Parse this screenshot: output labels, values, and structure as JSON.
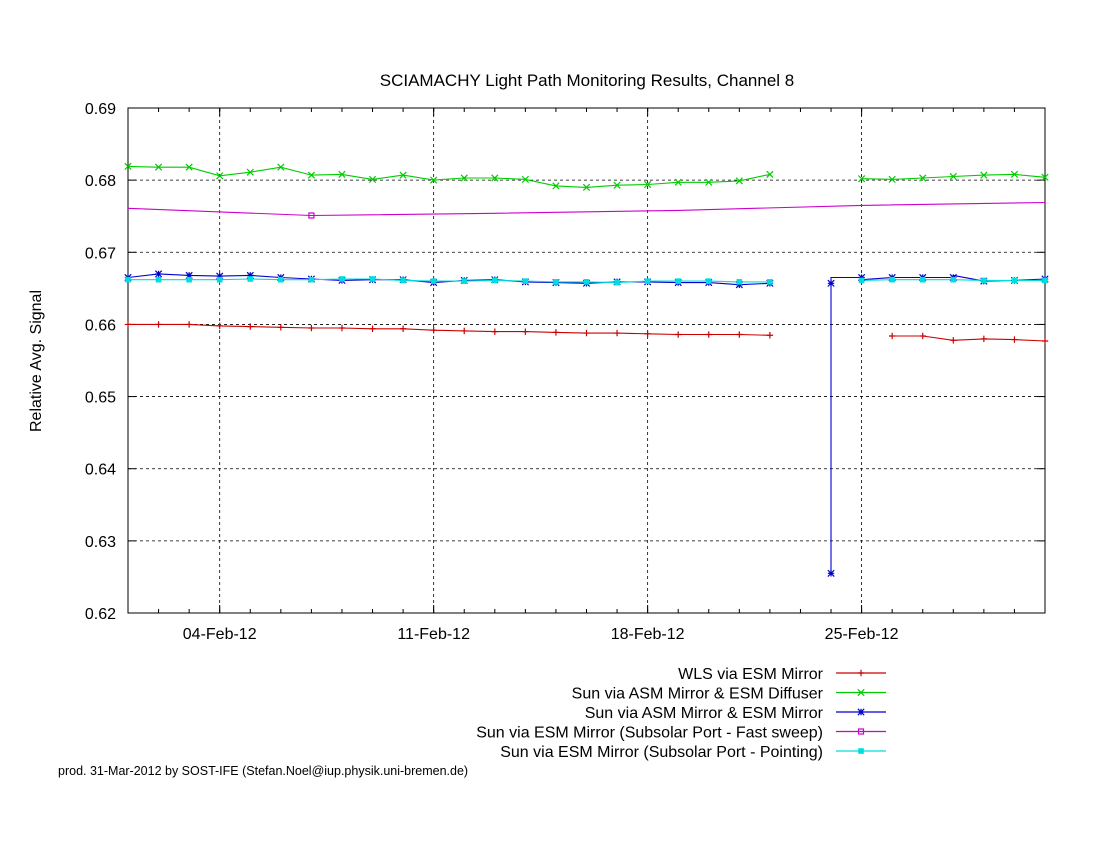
{
  "chart_data": {
    "type": "line",
    "title": "SCIAMACHY Light Path Monitoring Results, Channel 8",
    "xlabel": "",
    "ylabel": "Relative Avg. Signal",
    "x_start": "2012-02-01",
    "xlim": [
      "2012-02-01",
      "2012-03-02"
    ],
    "ylim": [
      0.62,
      0.69
    ],
    "y_ticks": [
      "0.62",
      "0.63",
      "0.64",
      "0.65",
      "0.66",
      "0.67",
      "0.68",
      "0.69"
    ],
    "x_ticks": [
      {
        "date": "2012-02-04",
        "label": "04-Feb-12"
      },
      {
        "date": "2012-02-11",
        "label": "11-Feb-12"
      },
      {
        "date": "2012-02-18",
        "label": "18-Feb-12"
      },
      {
        "date": "2012-02-25",
        "label": "25-Feb-12"
      }
    ],
    "grid": true,
    "legend_position": "bottom-right, below plot",
    "series": [
      {
        "name": "WLS via ESM Mirror",
        "color": "#cc0000",
        "marker": "plus",
        "segments": [
          [
            [
              "2012-02-01",
              0.66
            ],
            [
              "2012-02-02",
              0.66
            ],
            [
              "2012-02-03",
              0.66
            ],
            [
              "2012-02-04",
              0.6598
            ],
            [
              "2012-02-05",
              0.6597
            ],
            [
              "2012-02-06",
              0.6596
            ],
            [
              "2012-02-07",
              0.6595
            ],
            [
              "2012-02-08",
              0.6595
            ],
            [
              "2012-02-09",
              0.6594
            ],
            [
              "2012-02-10",
              0.6594
            ],
            [
              "2012-02-11",
              0.6592
            ],
            [
              "2012-02-12",
              0.6591
            ],
            [
              "2012-02-13",
              0.659
            ],
            [
              "2012-02-14",
              0.659
            ],
            [
              "2012-02-15",
              0.6589
            ],
            [
              "2012-02-16",
              0.6588
            ],
            [
              "2012-02-17",
              0.6588
            ],
            [
              "2012-02-18",
              0.6587
            ],
            [
              "2012-02-19",
              0.6586
            ],
            [
              "2012-02-20",
              0.6586
            ],
            [
              "2012-02-21",
              0.6586
            ],
            [
              "2012-02-22",
              0.6585
            ]
          ],
          [
            [
              "2012-02-26",
              0.6584
            ],
            [
              "2012-02-27",
              0.6584
            ],
            [
              "2012-02-28",
              0.6578
            ],
            [
              "2012-02-29",
              0.658
            ],
            [
              "2012-03-01",
              0.6579
            ],
            [
              "2012-03-02",
              0.6577
            ]
          ]
        ]
      },
      {
        "name": "Sun via ASM Mirror & ESM Diffuser",
        "color": "#00cc00",
        "marker": "cross",
        "segments": [
          [
            [
              "2012-02-01",
              0.6819
            ],
            [
              "2012-02-02",
              0.6818
            ],
            [
              "2012-02-03",
              0.6818
            ],
            [
              "2012-02-04",
              0.6806
            ],
            [
              "2012-02-05",
              0.6811
            ],
            [
              "2012-02-06",
              0.6818
            ],
            [
              "2012-02-07",
              0.6807
            ],
            [
              "2012-02-08",
              0.6808
            ],
            [
              "2012-02-09",
              0.6801
            ],
            [
              "2012-02-10",
              0.6807
            ],
            [
              "2012-02-11",
              0.68
            ],
            [
              "2012-02-12",
              0.6803
            ],
            [
              "2012-02-13",
              0.6803
            ],
            [
              "2012-02-14",
              0.6801
            ],
            [
              "2012-02-15",
              0.6792
            ],
            [
              "2012-02-16",
              0.679
            ],
            [
              "2012-02-17",
              0.6793
            ],
            [
              "2012-02-18",
              0.6794
            ],
            [
              "2012-02-19",
              0.6797
            ],
            [
              "2012-02-20",
              0.6797
            ],
            [
              "2012-02-21",
              0.6799
            ],
            [
              "2012-02-22",
              0.6808
            ]
          ],
          [
            [
              "2012-02-25",
              0.6802
            ],
            [
              "2012-02-26",
              0.6801
            ],
            [
              "2012-02-27",
              0.6803
            ],
            [
              "2012-02-28",
              0.6805
            ],
            [
              "2012-02-29",
              0.6807
            ],
            [
              "2012-03-01",
              0.6808
            ],
            [
              "2012-03-02",
              0.6804
            ]
          ]
        ]
      },
      {
        "name": "Sun via ASM Mirror & ESM Mirror",
        "color": "#0000cc",
        "marker": "star",
        "segments": [
          [
            [
              "2012-02-01",
              0.6665
            ],
            [
              "2012-02-02",
              0.667
            ],
            [
              "2012-02-03",
              0.6668
            ],
            [
              "2012-02-04",
              0.6667
            ],
            [
              "2012-02-05",
              0.6668
            ],
            [
              "2012-02-06",
              0.6665
            ],
            [
              "2012-02-07",
              0.6663
            ],
            [
              "2012-02-08",
              0.6661
            ],
            [
              "2012-02-09",
              0.6662
            ],
            [
              "2012-02-10",
              0.6662
            ],
            [
              "2012-02-11",
              0.6658
            ],
            [
              "2012-02-12",
              0.6661
            ],
            [
              "2012-02-13",
              0.6662
            ],
            [
              "2012-02-14",
              0.6659
            ],
            [
              "2012-02-15",
              0.6658
            ],
            [
              "2012-02-16",
              0.6657
            ],
            [
              "2012-02-17",
              0.6659
            ],
            [
              "2012-02-18",
              0.6659
            ],
            [
              "2012-02-19",
              0.6658
            ],
            [
              "2012-02-20",
              0.6658
            ],
            [
              "2012-02-21",
              0.6655
            ],
            [
              "2012-02-22",
              0.6657
            ]
          ],
          [
            [
              "2012-02-24",
              0.6657
            ],
            [
              "2012-02-24",
              0.6656
            ],
            [
              "2012-02-24",
              0.6255
            ],
            [
              "2012-02-24",
              0.6665
            ],
            [
              "2012-02-25",
              0.6665
            ],
            [
              "2012-02-25",
              0.6662
            ],
            [
              "2012-02-26",
              0.6665
            ],
            [
              "2012-02-27",
              0.6665
            ],
            [
              "2012-02-28",
              0.6665
            ],
            [
              "2012-02-28",
              0.6668
            ],
            [
              "2012-02-29",
              0.666
            ],
            [
              "2012-03-01",
              0.6661
            ],
            [
              "2012-03-02",
              0.6663
            ]
          ]
        ]
      },
      {
        "name": "Sun via ESM Mirror (Subsolar Port - Fast sweep)",
        "color": "#cc00cc",
        "marker": "square-open",
        "segments": [
          [
            [
              "2012-02-01",
              0.6761
            ],
            [
              "2012-02-07",
              0.6751
            ],
            [
              "2012-02-13",
              0.6754
            ],
            [
              "2012-02-19",
              0.6758
            ],
            [
              "2012-02-25",
              0.6765
            ],
            [
              "2012-03-02",
              0.6769
            ]
          ]
        ],
        "marked_points": [
          [
            "2012-02-07",
            0.6751
          ]
        ]
      },
      {
        "name": "Sun via ESM Mirror (Subsolar Port - Pointing)",
        "color": "#00dddd",
        "marker": "square-filled",
        "segments": [
          [
            [
              "2012-02-01",
              0.6662
            ],
            [
              "2012-02-02",
              0.6662
            ],
            [
              "2012-02-03",
              0.6662
            ],
            [
              "2012-02-04",
              0.6662
            ],
            [
              "2012-02-05",
              0.6663
            ],
            [
              "2012-02-06",
              0.6662
            ],
            [
              "2012-02-07",
              0.6662
            ],
            [
              "2012-02-08",
              0.6663
            ],
            [
              "2012-02-09",
              0.6663
            ],
            [
              "2012-02-10",
              0.6661
            ],
            [
              "2012-02-11",
              0.666
            ],
            [
              "2012-02-12",
              0.666
            ],
            [
              "2012-02-13",
              0.6661
            ],
            [
              "2012-02-14",
              0.666
            ],
            [
              "2012-02-15",
              0.6659
            ],
            [
              "2012-02-16",
              0.6659
            ],
            [
              "2012-02-17",
              0.6658
            ],
            [
              "2012-02-18",
              0.666
            ],
            [
              "2012-02-19",
              0.666
            ],
            [
              "2012-02-20",
              0.666
            ],
            [
              "2012-02-21",
              0.6659
            ],
            [
              "2012-02-22",
              0.6659
            ]
          ],
          [
            [
              "2012-02-25",
              0.6661
            ],
            [
              "2012-02-26",
              0.6662
            ],
            [
              "2012-02-27",
              0.6662
            ],
            [
              "2012-02-28",
              0.6662
            ],
            [
              "2012-02-29",
              0.6661
            ],
            [
              "2012-03-01",
              0.6661
            ],
            [
              "2012-03-02",
              0.6661
            ]
          ]
        ]
      }
    ]
  },
  "credit": "prod. 31-Mar-2012 by SOST-IFE (Stefan.Noel@iup.physik.uni-bremen.de)"
}
